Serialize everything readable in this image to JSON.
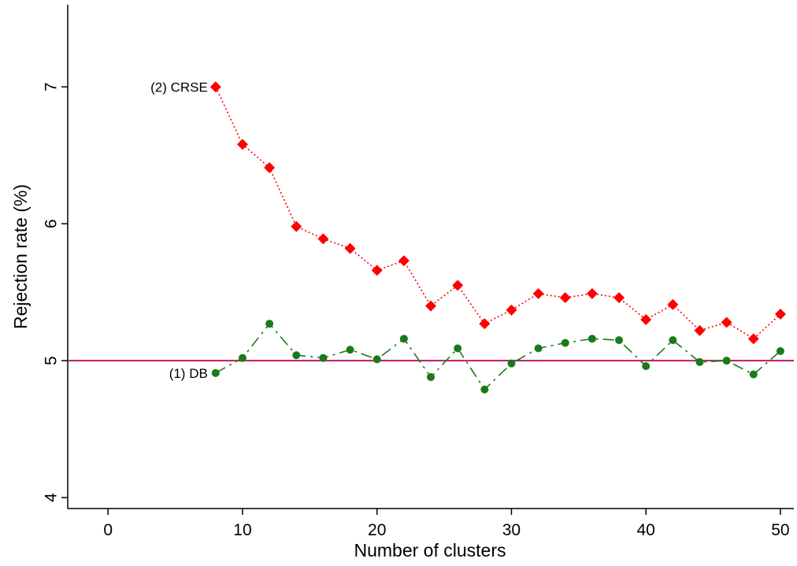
{
  "chart_data": {
    "type": "line",
    "title": "",
    "xlabel": "Number of clusters",
    "ylabel": "Rejection rate (%)",
    "xlim": [
      -3,
      51
    ],
    "ylim": [
      3.92,
      7.6
    ],
    "x_ticks": [
      0,
      10,
      20,
      30,
      40,
      50
    ],
    "y_ticks": [
      4,
      5,
      6,
      7
    ],
    "x_tick_labels": [
      "0",
      "10",
      "20",
      "30",
      "40",
      "50"
    ],
    "y_tick_labels": [
      "4",
      "5",
      "6",
      "7"
    ],
    "grid": false,
    "legend": "none",
    "reference_line": {
      "y": 5,
      "color": "#c2185b"
    },
    "x": [
      8,
      10,
      12,
      14,
      16,
      18,
      20,
      22,
      24,
      26,
      28,
      30,
      32,
      34,
      36,
      38,
      40,
      42,
      44,
      46,
      48,
      50
    ],
    "series": [
      {
        "name": "(1) DB",
        "color": "#1a7a1a",
        "marker": "circle",
        "line_style": "dashed",
        "values": [
          4.91,
          5.02,
          5.27,
          5.04,
          5.02,
          5.08,
          5.01,
          5.16,
          4.88,
          5.09,
          4.79,
          4.98,
          5.09,
          5.13,
          5.16,
          5.15,
          4.96,
          5.15,
          4.99,
          5.0,
          4.9,
          5.07
        ]
      },
      {
        "name": "(2) CRSE",
        "color": "#ff0000",
        "marker": "diamond",
        "line_style": "dotted",
        "values": [
          7.0,
          6.58,
          6.41,
          5.98,
          5.89,
          5.82,
          5.66,
          5.73,
          5.4,
          5.55,
          5.27,
          5.37,
          5.49,
          5.46,
          5.49,
          5.46,
          5.3,
          5.41,
          5.22,
          5.28,
          5.16,
          5.34
        ]
      }
    ]
  }
}
